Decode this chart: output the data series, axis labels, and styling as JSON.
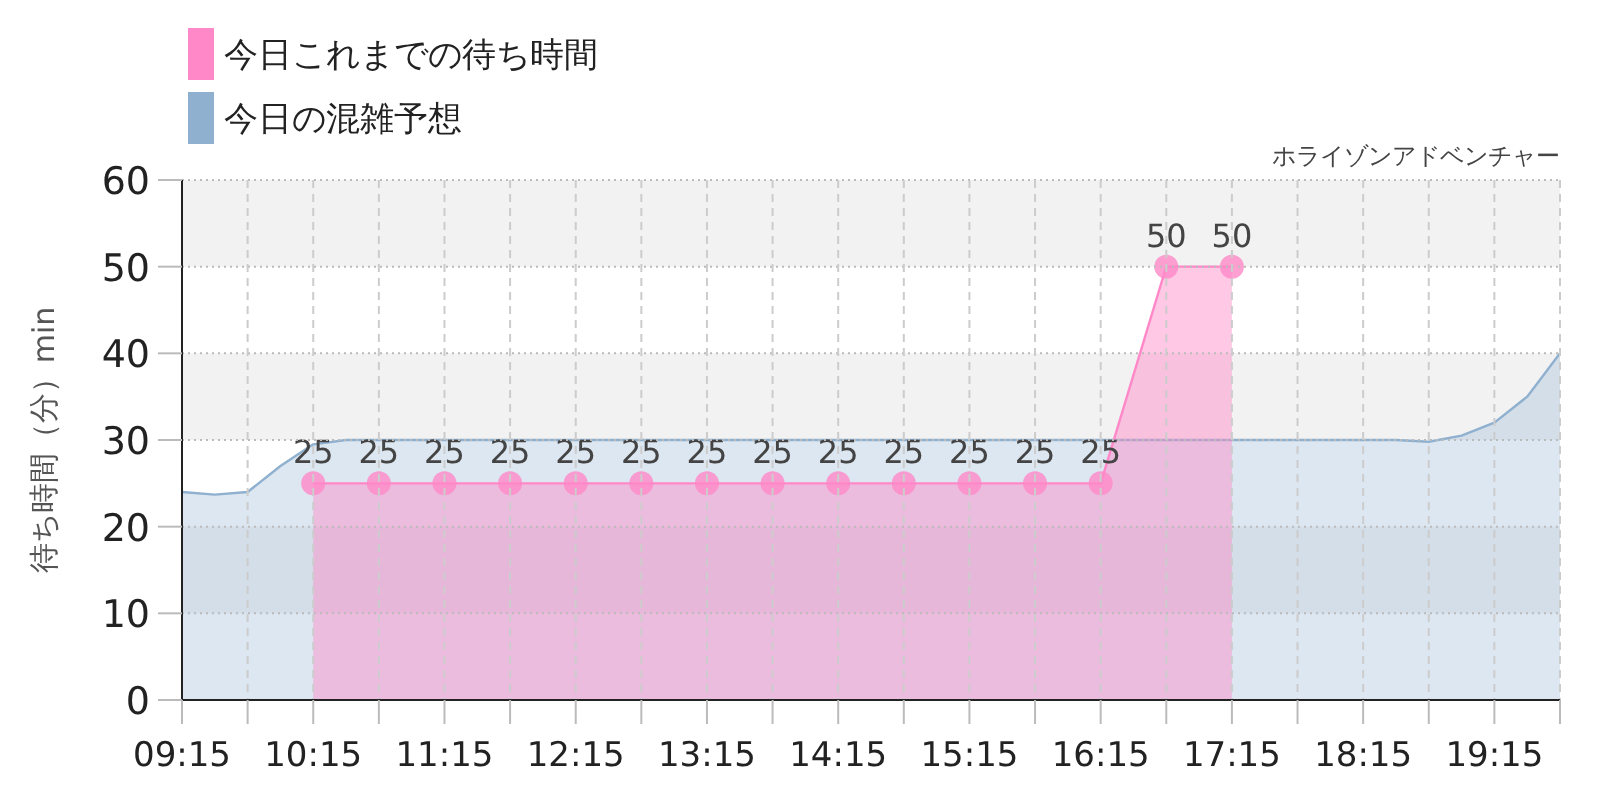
{
  "chart_data": {
    "type": "area",
    "title": "ホライゾンアドベンチャー",
    "ylabel": "待ち時間（分）min",
    "xlim": [
      9.25,
      19.75
    ],
    "xticks": [
      {
        "value": 9.25,
        "label": "09:15"
      },
      {
        "value": 9.75,
        "label": null
      },
      {
        "value": 10.25,
        "label": "10:15"
      },
      {
        "value": 10.75,
        "label": null
      },
      {
        "value": 11.25,
        "label": "11:15"
      },
      {
        "value": 11.75,
        "label": null
      },
      {
        "value": 12.25,
        "label": "12:15"
      },
      {
        "value": 12.75,
        "label": null
      },
      {
        "value": 13.25,
        "label": "13:15"
      },
      {
        "value": 13.75,
        "label": null
      },
      {
        "value": 14.25,
        "label": "14:15"
      },
      {
        "value": 14.75,
        "label": null
      },
      {
        "value": 15.25,
        "label": "15:15"
      },
      {
        "value": 15.75,
        "label": null
      },
      {
        "value": 16.25,
        "label": "16:15"
      },
      {
        "value": 16.75,
        "label": null
      },
      {
        "value": 17.25,
        "label": "17:15"
      },
      {
        "value": 17.75,
        "label": null
      },
      {
        "value": 18.25,
        "label": "18:15"
      },
      {
        "value": 18.75,
        "label": null
      },
      {
        "value": 19.25,
        "label": "19:15"
      },
      {
        "value": 19.75,
        "label": null
      }
    ],
    "ylim": [
      0,
      60
    ],
    "yticks": [
      0,
      10,
      20,
      30,
      40,
      50,
      60
    ],
    "grid": true,
    "legend": "top left",
    "bands": [
      {
        "axis": "y",
        "from": 10,
        "to": 20,
        "color": "#f2f2f2"
      },
      {
        "axis": "y",
        "from": 30,
        "to": 40,
        "color": "#f2f2f2"
      },
      {
        "axis": "y",
        "from": 50,
        "to": 60,
        "color": "#f2f2f2"
      }
    ],
    "series": [
      {
        "name": "今日の混雑予想",
        "color": "#8fb0cf",
        "x": [
          9.25,
          9.5,
          9.75,
          10.0,
          10.25,
          10.5,
          11.0,
          12.0,
          13.0,
          14.0,
          15.0,
          16.0,
          17.0,
          18.0,
          18.5,
          18.75,
          19.0,
          19.25,
          19.5,
          19.75
        ],
        "values": [
          24,
          23.7,
          24,
          27,
          29.5,
          30,
          30,
          30,
          30,
          30,
          30,
          30,
          30,
          30,
          30,
          29.8,
          30.5,
          32,
          35,
          40
        ]
      },
      {
        "name": "今日これまでの待ち時間",
        "color": "#ff88c8",
        "marker": "circle",
        "x": [
          10.25,
          10.75,
          11.25,
          11.75,
          12.25,
          12.75,
          13.25,
          13.75,
          14.25,
          14.75,
          15.25,
          15.75,
          16.25,
          16.75,
          17.25
        ],
        "values": [
          25,
          25,
          25,
          25,
          25,
          25,
          25,
          25,
          25,
          25,
          25,
          25,
          25,
          50,
          50
        ],
        "value_labels": [
          "25",
          "25",
          "25",
          "25",
          "25",
          "25",
          "25",
          "25",
          "25",
          "25",
          "25",
          "25",
          "25",
          "50",
          "50"
        ]
      }
    ]
  }
}
